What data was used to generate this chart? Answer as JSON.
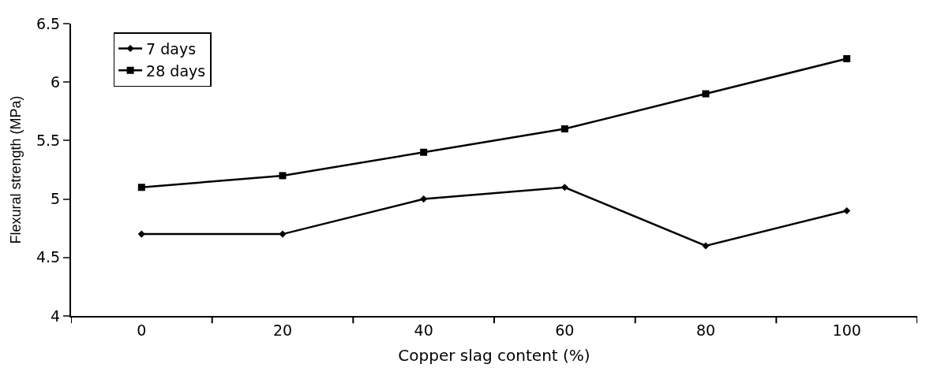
{
  "chart_data": {
    "type": "line",
    "xlabel": "Copper slag content (%)",
    "ylabel": "Flexural strength (MPa)",
    "categories": [
      "0",
      "20",
      "40",
      "60",
      "80",
      "100"
    ],
    "series": [
      {
        "name": "7 days",
        "color": "#000000",
        "marker": "diamond",
        "values": [
          4.7,
          4.7,
          5.0,
          5.1,
          4.6,
          4.9
        ]
      },
      {
        "name": "28 days",
        "color": "#000000",
        "marker": "square",
        "values": [
          5.1,
          5.2,
          5.4,
          5.6,
          5.9,
          6.2
        ]
      }
    ],
    "ylim": [
      4,
      6.5
    ],
    "yticks": [
      4,
      4.5,
      5,
      5.5,
      6,
      6.5
    ],
    "legend": "top left",
    "line_style": "solid"
  }
}
